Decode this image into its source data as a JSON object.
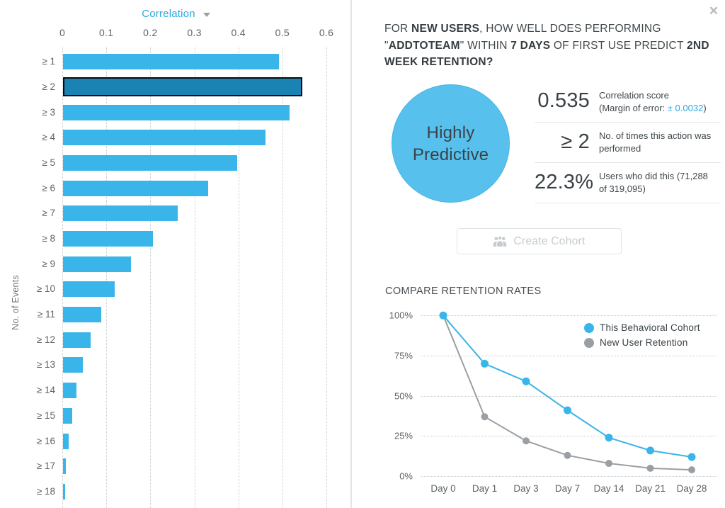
{
  "colors": {
    "accent_blue": "#3ab5e9",
    "selected_bar": "#1b82b4",
    "link_blue": "#2aa8e0",
    "series_gray": "#9a9fa3",
    "text_dark": "#3a4145",
    "text_muted": "#5d6367",
    "disabled_gray": "#c5cbcf"
  },
  "left_panel": {
    "dropdown_label": "Correlation",
    "x_tick_labels": [
      "0",
      "0.1",
      "0.2",
      "0.3",
      "0.4",
      "0.5",
      "0.6"
    ]
  },
  "panel": {
    "close_icon": "✕",
    "question_segments": [
      {
        "text": "FOR ",
        "bold": false
      },
      {
        "text": "NEW USERS",
        "bold": true
      },
      {
        "text": ", HOW WELL DOES PERFORMING \"",
        "bold": false
      },
      {
        "text": "ADDTOTEAM",
        "bold": true
      },
      {
        "text": "\" WITHIN ",
        "bold": false
      },
      {
        "text": "7 DAYS",
        "bold": true
      },
      {
        "text": " OF FIRST USE PREDICT ",
        "bold": false
      },
      {
        "text": "2ND WEEK RETENTION?",
        "bold": true
      }
    ],
    "badge": {
      "line1": "Highly",
      "line2": "Predictive"
    },
    "stats": [
      {
        "value": "0.535",
        "label_parts": [
          {
            "text": "Correlation score\n(Margin of error: ",
            "blue": false
          },
          {
            "text": "± 0.0032",
            "blue": true
          },
          {
            "text": ")",
            "blue": false
          }
        ]
      },
      {
        "value": "≥ 2",
        "label_parts": [
          {
            "text": "No. of times this action was performed",
            "blue": false
          }
        ]
      },
      {
        "value": "22.3%",
        "label_parts": [
          {
            "text": "Users who did this (71,288 of 319,095)",
            "blue": false
          }
        ]
      }
    ],
    "create_cohort_label": "Create Cohort"
  },
  "chart_data": [
    {
      "type": "bar",
      "orientation": "horizontal",
      "title": "Correlation",
      "ylabel": "No. of Events",
      "categories": [
        "≥ 1",
        "≥ 2",
        "≥ 3",
        "≥ 4",
        "≥ 5",
        "≥ 6",
        "≥ 7",
        "≥ 8",
        "≥ 9",
        "≥ 10",
        "≥ 11",
        "≥ 12",
        "≥ 13",
        "≥ 14",
        "≥ 15",
        "≥ 16",
        "≥ 17",
        "≥ 18"
      ],
      "values": [
        0.49,
        0.535,
        0.515,
        0.46,
        0.395,
        0.33,
        0.26,
        0.205,
        0.155,
        0.118,
        0.087,
        0.062,
        0.045,
        0.031,
        0.021,
        0.013,
        0.007,
        0.005
      ],
      "selected_category": "≥ 2",
      "selected_index": 1,
      "xlim": [
        0,
        0.6
      ],
      "x_ticks": [
        0,
        0.1,
        0.2,
        0.3,
        0.4,
        0.5,
        0.6
      ],
      "grid": "dotted-vertical"
    },
    {
      "type": "line",
      "title": "COMPARE RETENTION RATES",
      "categories": [
        "Day 0",
        "Day 1",
        "Day 3",
        "Day 7",
        "Day 14",
        "Day 21",
        "Day 28"
      ],
      "series": [
        {
          "name": "New User Retention",
          "color": "#9a9fa3",
          "values": [
            100,
            37,
            22,
            13,
            8,
            5,
            4
          ]
        },
        {
          "name": "This Behavioral Cohort",
          "color": "#3ab5e9",
          "values": [
            100,
            70,
            59,
            41,
            24,
            16,
            12
          ]
        }
      ],
      "legend_order": [
        "This Behavioral Cohort",
        "New User Retention"
      ],
      "y_ticks": [
        100,
        75,
        50,
        25,
        0
      ],
      "y_tick_suffix": "%",
      "ylim": [
        0,
        100
      ],
      "legend_position": "top-right",
      "grid": "dotted-horizontal"
    }
  ]
}
